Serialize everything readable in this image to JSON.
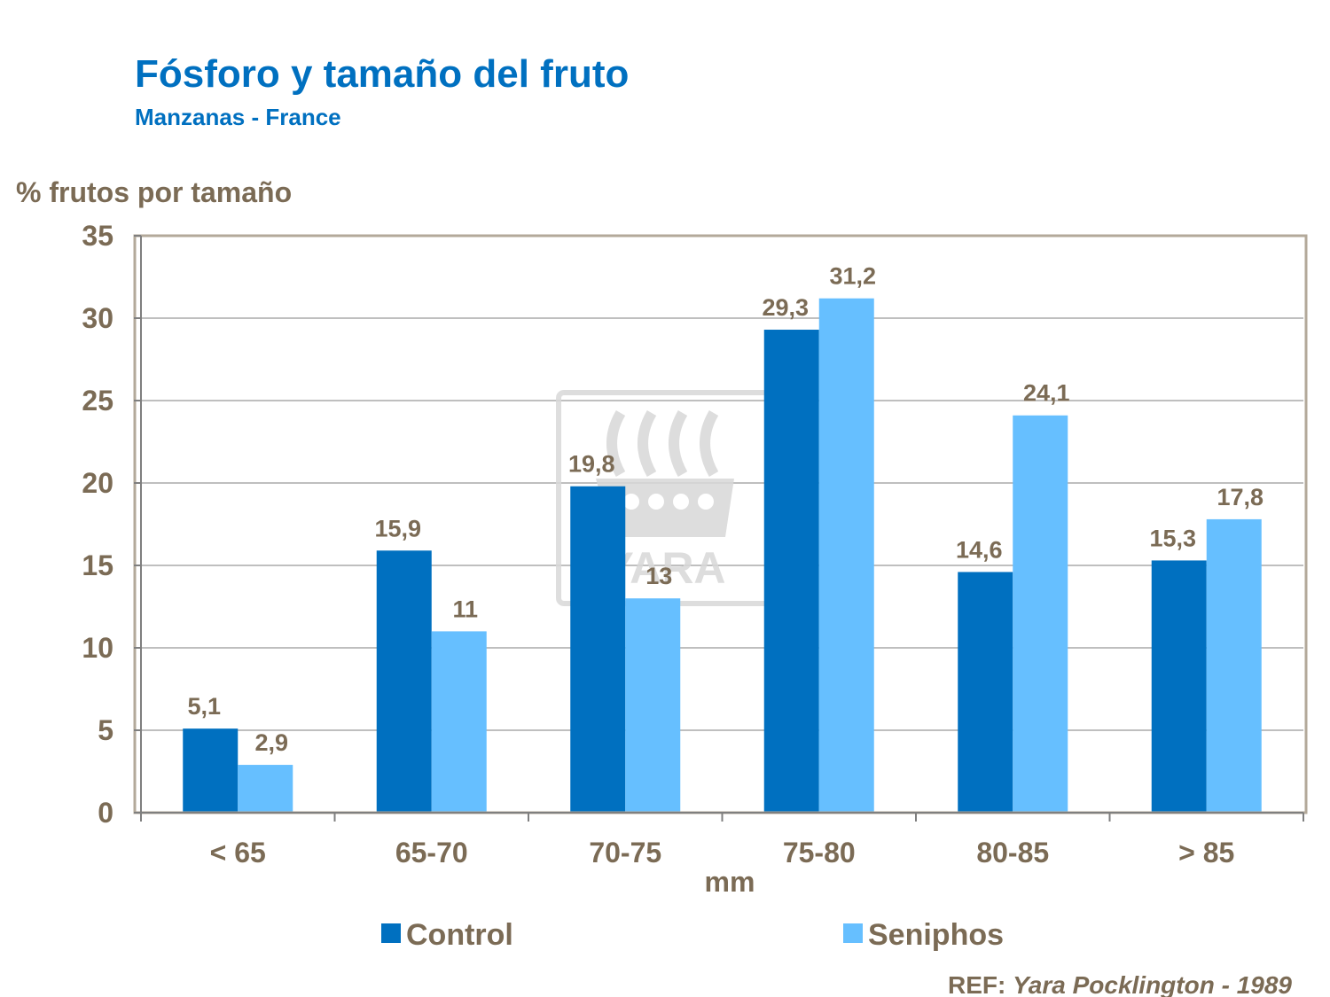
{
  "colors": {
    "title": "#0070C0",
    "text": "#7B6B55",
    "frame": "#B3A99A",
    "gridline": "#7F7F7F",
    "control": "#0070C0",
    "seniphos": "#66BFFF",
    "watermark": "#D8D8D8"
  },
  "header": {
    "title": "Fósforo y tamaño del fruto",
    "subtitle": "Manzanas - France"
  },
  "watermark": {
    "icon": "yara-ship-logo-icon",
    "text": "YARA"
  },
  "reference": {
    "prefix": "REF: ",
    "source": "Yara Pocklington -  1989"
  },
  "chart_data": {
    "type": "bar",
    "title": "",
    "xlabel": "mm",
    "ylabel": "% frutos por tamaño",
    "ylim": [
      0,
      35
    ],
    "yticks": [
      0,
      5,
      10,
      15,
      20,
      25,
      30,
      35
    ],
    "grid": true,
    "legend_position": "bottom",
    "categories": [
      "< 65",
      "65-70",
      "70-75",
      "75-80",
      "80-85",
      "> 85"
    ],
    "series": [
      {
        "name": "Control",
        "color": "#0070C0",
        "values": [
          5.1,
          15.9,
          19.8,
          29.3,
          14.6,
          15.3
        ],
        "labels": [
          "5,1",
          "15,9",
          "19,8",
          "29,3",
          "14,6",
          "15,3"
        ]
      },
      {
        "name": "Seniphos",
        "color": "#66BFFF",
        "values": [
          2.9,
          11,
          13,
          31.2,
          24.1,
          17.8
        ],
        "labels": [
          "2,9",
          "11",
          "13",
          "31,2",
          "24,1",
          "17,8"
        ]
      }
    ]
  }
}
